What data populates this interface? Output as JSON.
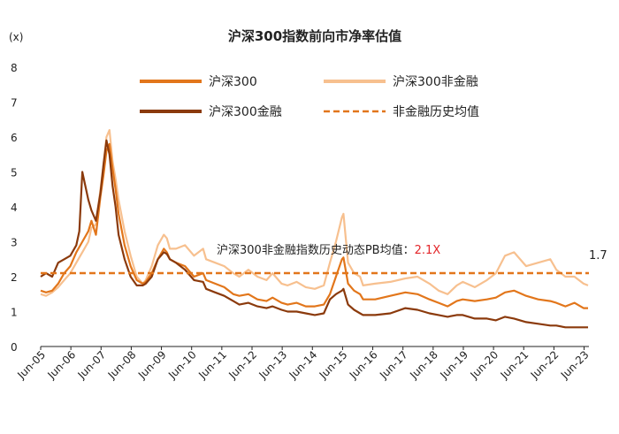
{
  "chart_data": {
    "type": "line",
    "title": "沪深300指数前向市净率估值",
    "unit_label": "(x)",
    "ylim": [
      0,
      8
    ],
    "y_ticks": [
      "0",
      "1",
      "2",
      "3",
      "4",
      "5",
      "6",
      "7",
      "8"
    ],
    "x_tick_labels": [
      "Jun-05",
      "Jun-06",
      "Jun-07",
      "Jun-08",
      "Jun-09",
      "Jun-10",
      "Jun-11",
      "Jun-12",
      "Jun-13",
      "Jun-14",
      "Jun-15",
      "Jun-16",
      "Jun-17",
      "Jun-18",
      "Jun-19",
      "Jun-20",
      "Jun-21",
      "Jun-22",
      "Jun-23"
    ],
    "xlim": [
      2005.42,
      2023.58
    ],
    "grid": false,
    "legend_position": "top",
    "colors": {
      "hs300": "#E2761B",
      "nonfin": "#F7C08F",
      "fin": "#8B3A0C",
      "avg": "#E2761B",
      "annotation_value": "#E3262A"
    },
    "series": [
      {
        "name": "沪深300",
        "key": "hs300",
        "x": [
          2005.42,
          2005.6,
          2005.8,
          2006.0,
          2006.2,
          2006.4,
          2006.6,
          2006.8,
          2007.0,
          2007.1,
          2007.25,
          2007.4,
          2007.5,
          2007.6,
          2007.7,
          2007.8,
          2007.9,
          2008.0,
          2008.2,
          2008.4,
          2008.6,
          2008.8,
          2008.9,
          2009.1,
          2009.3,
          2009.5,
          2009.6,
          2009.7,
          2009.9,
          2010.2,
          2010.5,
          2010.8,
          2010.9,
          2011.2,
          2011.5,
          2011.8,
          2012.0,
          2012.3,
          2012.6,
          2012.9,
          2013.1,
          2013.4,
          2013.6,
          2013.9,
          2014.2,
          2014.5,
          2014.8,
          2015.0,
          2015.2,
          2015.4,
          2015.45,
          2015.6,
          2015.8,
          2016.0,
          2016.1,
          2016.5,
          2017.0,
          2017.5,
          2017.9,
          2018.3,
          2018.6,
          2018.9,
          2019.2,
          2019.4,
          2019.8,
          2020.2,
          2020.5,
          2020.8,
          2021.1,
          2021.5,
          2021.9,
          2022.3,
          2022.5,
          2022.8,
          2023.1,
          2023.4,
          2023.55
        ],
        "values": [
          1.6,
          1.55,
          1.6,
          1.8,
          2.1,
          2.3,
          2.7,
          3.0,
          3.3,
          3.6,
          3.2,
          4.3,
          4.9,
          5.6,
          5.8,
          5.1,
          4.5,
          3.8,
          2.9,
          2.3,
          1.9,
          1.8,
          1.85,
          2.1,
          2.5,
          2.8,
          2.7,
          2.5,
          2.4,
          2.3,
          2.0,
          2.1,
          1.9,
          1.8,
          1.7,
          1.5,
          1.45,
          1.5,
          1.35,
          1.3,
          1.4,
          1.25,
          1.2,
          1.25,
          1.15,
          1.15,
          1.2,
          1.5,
          2.0,
          2.5,
          2.55,
          1.8,
          1.6,
          1.5,
          1.35,
          1.35,
          1.45,
          1.55,
          1.5,
          1.35,
          1.25,
          1.15,
          1.3,
          1.35,
          1.3,
          1.35,
          1.4,
          1.55,
          1.6,
          1.45,
          1.35,
          1.3,
          1.25,
          1.15,
          1.25,
          1.1,
          1.1
        ]
      },
      {
        "name": "沪深300非金融",
        "key": "nonfin",
        "x": [
          2005.42,
          2005.6,
          2005.8,
          2006.0,
          2006.2,
          2006.4,
          2006.6,
          2006.8,
          2007.0,
          2007.1,
          2007.25,
          2007.4,
          2007.5,
          2007.6,
          2007.7,
          2007.8,
          2007.9,
          2008.0,
          2008.2,
          2008.4,
          2008.6,
          2008.8,
          2008.9,
          2009.1,
          2009.3,
          2009.5,
          2009.6,
          2009.7,
          2009.9,
          2010.2,
          2010.5,
          2010.8,
          2010.9,
          2011.2,
          2011.5,
          2011.8,
          2012.0,
          2012.3,
          2012.6,
          2012.9,
          2013.1,
          2013.4,
          2013.6,
          2013.9,
          2014.2,
          2014.5,
          2014.8,
          2015.0,
          2015.2,
          2015.4,
          2015.45,
          2015.6,
          2015.8,
          2016.0,
          2016.1,
          2016.5,
          2017.0,
          2017.5,
          2017.9,
          2018.3,
          2018.6,
          2018.9,
          2019.2,
          2019.4,
          2019.8,
          2020.2,
          2020.5,
          2020.8,
          2021.1,
          2021.5,
          2021.9,
          2022.3,
          2022.5,
          2022.8,
          2023.1,
          2023.4,
          2023.55
        ],
        "values": [
          1.5,
          1.45,
          1.55,
          1.7,
          1.9,
          2.1,
          2.4,
          2.7,
          3.0,
          3.4,
          3.5,
          4.5,
          5.2,
          6.0,
          6.2,
          5.3,
          4.8,
          4.2,
          3.3,
          2.6,
          2.0,
          1.8,
          1.9,
          2.3,
          2.9,
          3.2,
          3.1,
          2.8,
          2.8,
          2.9,
          2.6,
          2.8,
          2.5,
          2.4,
          2.3,
          2.1,
          2.0,
          2.2,
          2.0,
          1.9,
          2.1,
          1.8,
          1.75,
          1.85,
          1.7,
          1.65,
          1.75,
          2.4,
          3.0,
          3.7,
          3.8,
          2.4,
          2.1,
          2.0,
          1.75,
          1.8,
          1.85,
          1.95,
          2.0,
          1.8,
          1.6,
          1.5,
          1.75,
          1.85,
          1.7,
          1.9,
          2.1,
          2.6,
          2.7,
          2.3,
          2.4,
          2.5,
          2.2,
          2.0,
          2.0,
          1.8,
          1.75
        ]
      },
      {
        "name": "沪深300金融",
        "key": "fin",
        "x": [
          2005.42,
          2005.6,
          2005.8,
          2006.0,
          2006.2,
          2006.4,
          2006.6,
          2006.7,
          2006.8,
          2007.0,
          2007.1,
          2007.25,
          2007.4,
          2007.5,
          2007.6,
          2007.7,
          2007.8,
          2007.9,
          2008.0,
          2008.2,
          2008.4,
          2008.6,
          2008.8,
          2008.9,
          2009.1,
          2009.3,
          2009.5,
          2009.6,
          2009.7,
          2009.9,
          2010.2,
          2010.5,
          2010.8,
          2010.9,
          2011.2,
          2011.5,
          2011.8,
          2012.0,
          2012.3,
          2012.6,
          2012.9,
          2013.1,
          2013.4,
          2013.6,
          2013.9,
          2014.2,
          2014.5,
          2014.8,
          2015.0,
          2015.2,
          2015.4,
          2015.45,
          2015.6,
          2015.8,
          2016.0,
          2016.1,
          2016.5,
          2017.0,
          2017.5,
          2017.9,
          2018.3,
          2018.6,
          2018.9,
          2019.2,
          2019.4,
          2019.8,
          2020.2,
          2020.5,
          2020.8,
          2021.1,
          2021.5,
          2021.9,
          2022.3,
          2022.5,
          2022.8,
          2023.1,
          2023.4,
          2023.55
        ],
        "values": [
          2.0,
          2.1,
          2.0,
          2.4,
          2.5,
          2.6,
          2.9,
          3.3,
          5.0,
          4.2,
          3.9,
          3.6,
          4.4,
          5.2,
          5.9,
          5.5,
          4.6,
          4.0,
          3.2,
          2.5,
          2.0,
          1.75,
          1.75,
          1.8,
          2.0,
          2.5,
          2.7,
          2.65,
          2.5,
          2.4,
          2.2,
          1.9,
          1.85,
          1.65,
          1.55,
          1.45,
          1.3,
          1.2,
          1.25,
          1.15,
          1.1,
          1.15,
          1.05,
          1.0,
          1.0,
          0.95,
          0.9,
          0.95,
          1.35,
          1.5,
          1.6,
          1.65,
          1.2,
          1.05,
          0.95,
          0.9,
          0.9,
          0.95,
          1.1,
          1.05,
          0.95,
          0.9,
          0.85,
          0.9,
          0.9,
          0.8,
          0.8,
          0.75,
          0.85,
          0.8,
          0.7,
          0.65,
          0.6,
          0.6,
          0.55,
          0.55,
          0.55,
          0.55
        ]
      }
    ],
    "reference_line": {
      "name": "非金融历史均值",
      "value": 2.1,
      "style": "dashed"
    },
    "annotation": {
      "label": "沪深300非金融指数历史动态PB均值：",
      "value": "2.1X"
    },
    "end_label": "1.7"
  }
}
